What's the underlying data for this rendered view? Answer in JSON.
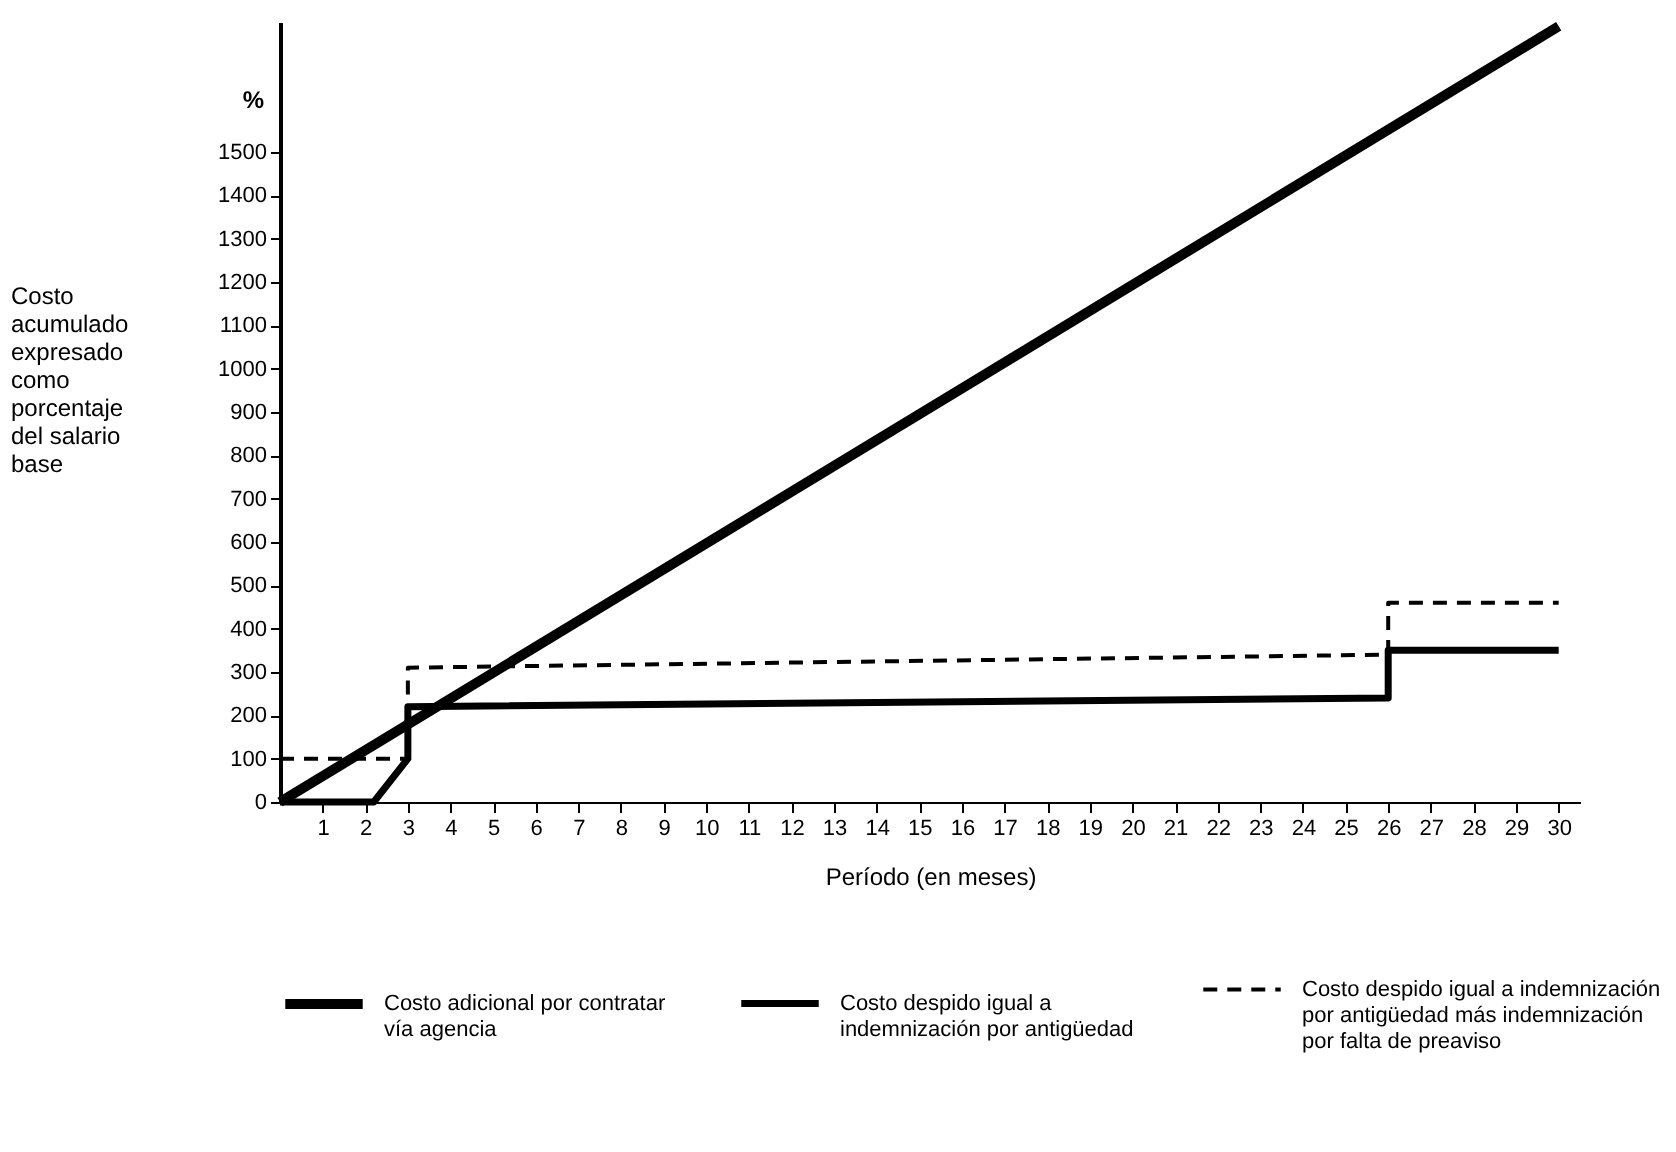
{
  "chart_data": {
    "type": "line",
    "xlabel": "Período (en meses)",
    "ylabel": "Costo\nacumulado\nexpresado\ncomo\nporcentaje\ndel salario\nbase",
    "annotations": [
      "%"
    ],
    "xlim": [
      0,
      30.5
    ],
    "xticks": [
      1,
      2,
      3,
      4,
      5,
      6,
      7,
      8,
      9,
      10,
      11,
      12,
      13,
      14,
      15,
      16,
      17,
      18,
      19,
      20,
      21,
      22,
      23,
      24,
      25,
      26,
      27,
      28,
      29,
      30
    ],
    "ylim": [
      0,
      1800
    ],
    "yticks": [
      0,
      100,
      200,
      300,
      400,
      500,
      600,
      700,
      800,
      900,
      1000,
      1100,
      1200,
      1300,
      1400,
      1500
    ],
    "grid": false,
    "legend": "bottom",
    "marker": "none",
    "series": [
      {
        "name": "Costo adicional por contratar\nvía agencia",
        "color": "#000000",
        "line_style": "solid",
        "x": [
          0,
          30
        ],
        "values": [
          0,
          1790
        ]
      },
      {
        "name": "Costo despido igual a\nindemnización por antigüedad",
        "color": "#000000",
        "line_style": "solid",
        "x": [
          0,
          2.2,
          3,
          3,
          26,
          26,
          30
        ],
        "values": [
          0,
          0,
          100,
          220,
          240,
          350,
          350
        ]
      },
      {
        "name": "Costo despido igual a indemnización\npor antigüedad más indemnización\npor falta de preaviso",
        "color": "#000000",
        "line_style": "dashed",
        "x": [
          0,
          3,
          3,
          26,
          26,
          30
        ],
        "values": [
          100,
          100,
          310,
          340,
          460,
          460
        ]
      }
    ]
  }
}
